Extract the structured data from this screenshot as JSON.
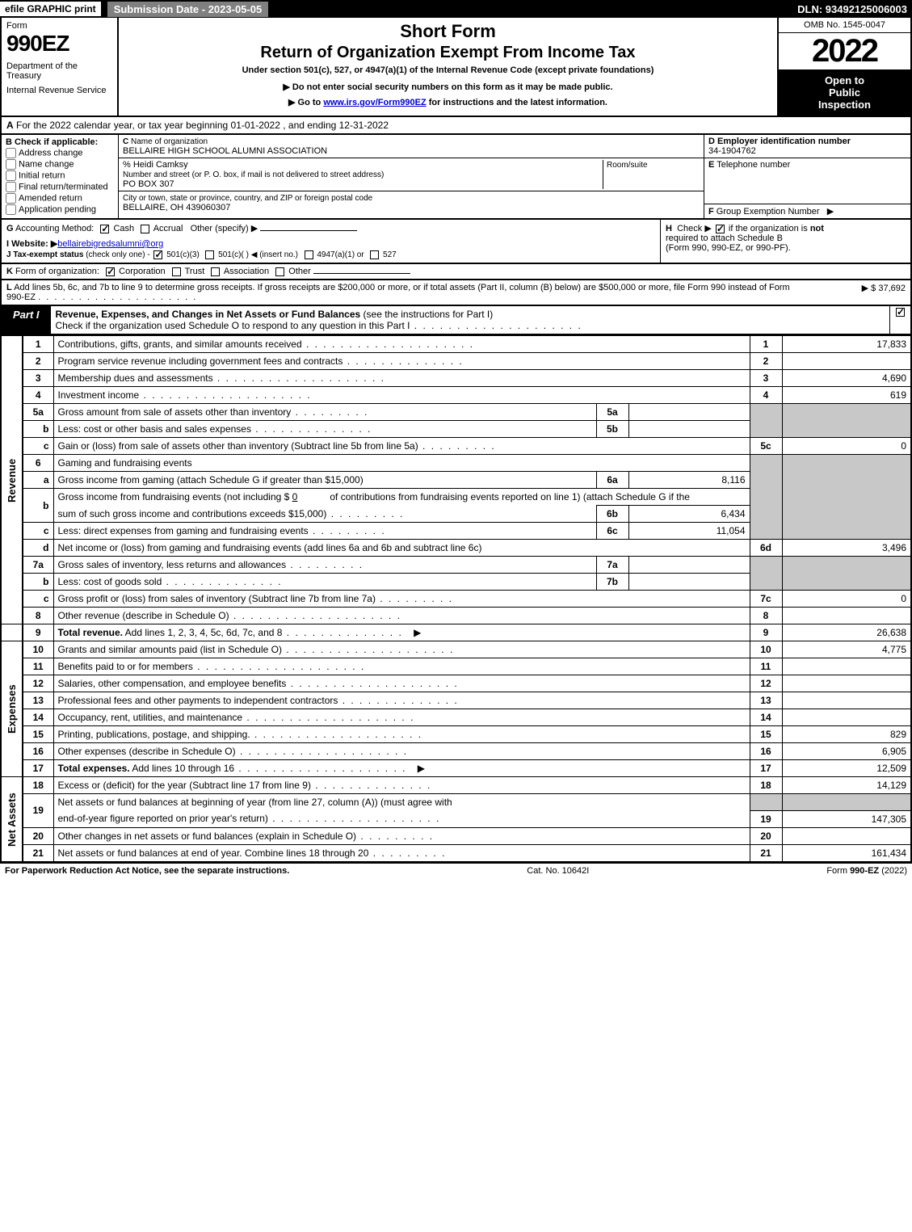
{
  "topbar": {
    "efile": "efile GRAPHIC print",
    "submission": "Submission Date - 2023-05-05",
    "dln": "DLN: 93492125006003"
  },
  "header": {
    "form_word": "Form",
    "form_num": "990EZ",
    "dept1": "Department of the Treasury",
    "dept2": "Internal Revenue Service",
    "short_form": "Short Form",
    "return_title": "Return of Organization Exempt From Income Tax",
    "under_sec": "Under section 501(c), 527, or 4947(a)(1) of the Internal Revenue Code (except private foundations)",
    "note1": "▶ Do not enter social security numbers on this form as it may be made public.",
    "note2_pre": "▶ Go to ",
    "note2_link": "www.irs.gov/Form990EZ",
    "note2_post": " for instructions and the latest information.",
    "omb": "OMB No. 1545-0047",
    "year": "2022",
    "open1": "Open to",
    "open2": "Public",
    "open3": "Inspection"
  },
  "section_a": {
    "label": "A",
    "text": "For the 2022 calendar year, or tax year beginning 01-01-2022  , and ending 12-31-2022"
  },
  "section_b": {
    "label": "B",
    "hdr": "Check if applicable:",
    "opts": [
      "Address change",
      "Name change",
      "Initial return",
      "Final return/terminated",
      "Amended return",
      "Application pending"
    ]
  },
  "section_c": {
    "label": "C",
    "name_lbl": "Name of organization",
    "name_val": "BELLAIRE HIGH SCHOOL ALUMNI ASSOCIATION",
    "care_of": "% Heidi Camksy",
    "street_lbl": "Number and street (or P. O. box, if mail is not delivered to street address)",
    "street_val": "PO BOX 307",
    "room_lbl": "Room/suite",
    "city_lbl": "City or town, state or province, country, and ZIP or foreign postal code",
    "city_val": "BELLAIRE, OH  439060307"
  },
  "section_d": {
    "label": "D",
    "hdr": "Employer identification number",
    "val": "34-1904762"
  },
  "section_e": {
    "label": "E",
    "hdr": "Telephone number",
    "val": ""
  },
  "section_f": {
    "label": "F",
    "hdr": "Group Exemption Number",
    "arrow": "▶"
  },
  "section_g": {
    "label": "G",
    "hdr": "Accounting Method:",
    "cash": "Cash",
    "accrual": "Accrual",
    "other": "Other (specify) ▶"
  },
  "section_h": {
    "label": "H",
    "text1": "Check ▶",
    "text2": "if the organization is",
    "text_not": "not",
    "text3": "required to attach Schedule B",
    "text4": "(Form 990, 990-EZ, or 990-PF)."
  },
  "section_i": {
    "label": "I",
    "hdr": "Website: ▶",
    "val": "bellairebigredsalumni@org"
  },
  "section_j": {
    "label": "J",
    "hdr": "Tax-exempt status",
    "note": "(check only one) -",
    "o1": "501(c)(3)",
    "o2": "501(c)(   ) ◀ (insert no.)",
    "o3": "4947(a)(1) or",
    "o4": "527"
  },
  "section_k": {
    "label": "K",
    "hdr": "Form of organization:",
    "o1": "Corporation",
    "o2": "Trust",
    "o3": "Association",
    "o4": "Other"
  },
  "section_l": {
    "label": "L",
    "text": "Add lines 5b, 6c, and 7b to line 9 to determine gross receipts. If gross receipts are $200,000 or more, or if total assets (Part II, column (B) below) are $500,000 or more, file Form 990 instead of Form 990-EZ",
    "amt_prefix": "▶ $ ",
    "amt": "37,692"
  },
  "part1": {
    "badge": "Part I",
    "title": "Revenue, Expenses, and Changes in Net Assets or Fund Balances",
    "title_paren": "(see the instructions for Part I)",
    "sub": "Check if the organization used Schedule O to respond to any question in this Part I"
  },
  "side_labels": {
    "revenue": "Revenue",
    "expenses": "Expenses",
    "net": "Net Assets"
  },
  "lines": {
    "l1": {
      "n": "1",
      "d": "Contributions, gifts, grants, and similar amounts received",
      "a": "17,833"
    },
    "l2": {
      "n": "2",
      "d": "Program service revenue including government fees and contracts",
      "a": ""
    },
    "l3": {
      "n": "3",
      "d": "Membership dues and assessments",
      "a": "4,690"
    },
    "l4": {
      "n": "4",
      "d": "Investment income",
      "a": "619"
    },
    "l5a": {
      "n": "5a",
      "d": "Gross amount from sale of assets other than inventory",
      "sub": "5a",
      "sv": ""
    },
    "l5b": {
      "n": "b",
      "d": "Less: cost or other basis and sales expenses",
      "sub": "5b",
      "sv": ""
    },
    "l5c": {
      "n": "c",
      "d": "Gain or (loss) from sale of assets other than inventory (Subtract line 5b from line 5a)",
      "rn": "5c",
      "a": "0"
    },
    "l6": {
      "n": "6",
      "d": "Gaming and fundraising events"
    },
    "l6a": {
      "n": "a",
      "d": "Gross income from gaming (attach Schedule G if greater than $15,000)",
      "sub": "6a",
      "sv": "8,116"
    },
    "l6b": {
      "n": "b",
      "d1": "Gross income from fundraising events (not including $",
      "d_amt": "0",
      "d1b": "of contributions from fundraising events reported on line 1) (attach Schedule G if the",
      "d2": "sum of such gross income and contributions exceeds $15,000)",
      "sub": "6b",
      "sv": "6,434"
    },
    "l6c": {
      "n": "c",
      "d": "Less: direct expenses from gaming and fundraising events",
      "sub": "6c",
      "sv": "11,054"
    },
    "l6d": {
      "n": "d",
      "d": "Net income or (loss) from gaming and fundraising events (add lines 6a and 6b and subtract line 6c)",
      "rn": "6d",
      "a": "3,496"
    },
    "l7a": {
      "n": "7a",
      "d": "Gross sales of inventory, less returns and allowances",
      "sub": "7a",
      "sv": ""
    },
    "l7b": {
      "n": "b",
      "d": "Less: cost of goods sold",
      "sub": "7b",
      "sv": ""
    },
    "l7c": {
      "n": "c",
      "d": "Gross profit or (loss) from sales of inventory (Subtract line 7b from line 7a)",
      "rn": "7c",
      "a": "0"
    },
    "l8": {
      "n": "8",
      "d": "Other revenue (describe in Schedule O)",
      "rn": "8",
      "a": ""
    },
    "l9": {
      "n": "9",
      "d": "Total revenue.",
      "d2": "Add lines 1, 2, 3, 4, 5c, 6d, 7c, and 8",
      "rn": "9",
      "a": "26,638"
    },
    "l10": {
      "n": "10",
      "d": "Grants and similar amounts paid (list in Schedule O)",
      "rn": "10",
      "a": "4,775"
    },
    "l11": {
      "n": "11",
      "d": "Benefits paid to or for members",
      "rn": "11",
      "a": ""
    },
    "l12": {
      "n": "12",
      "d": "Salaries, other compensation, and employee benefits",
      "rn": "12",
      "a": ""
    },
    "l13": {
      "n": "13",
      "d": "Professional fees and other payments to independent contractors",
      "rn": "13",
      "a": ""
    },
    "l14": {
      "n": "14",
      "d": "Occupancy, rent, utilities, and maintenance",
      "rn": "14",
      "a": ""
    },
    "l15": {
      "n": "15",
      "d": "Printing, publications, postage, and shipping.",
      "rn": "15",
      "a": "829"
    },
    "l16": {
      "n": "16",
      "d": "Other expenses (describe in Schedule O)",
      "rn": "16",
      "a": "6,905"
    },
    "l17": {
      "n": "17",
      "d": "Total expenses.",
      "d2": "Add lines 10 through 16",
      "rn": "17",
      "a": "12,509"
    },
    "l18": {
      "n": "18",
      "d": "Excess or (deficit) for the year (Subtract line 17 from line 9)",
      "rn": "18",
      "a": "14,129"
    },
    "l19": {
      "n": "19",
      "d": "Net assets or fund balances at beginning of year (from line 27, column (A)) (must agree with",
      "d2": "end-of-year figure reported on prior year's return)",
      "rn": "19",
      "a": "147,305"
    },
    "l20": {
      "n": "20",
      "d": "Other changes in net assets or fund balances (explain in Schedule O)",
      "rn": "20",
      "a": ""
    },
    "l21": {
      "n": "21",
      "d": "Net assets or fund balances at end of year. Combine lines 18 through 20",
      "rn": "21",
      "a": "161,434"
    }
  },
  "footer": {
    "left": "For Paperwork Reduction Act Notice, see the separate instructions.",
    "center": "Cat. No. 10642I",
    "right_pre": "Form ",
    "right_bold": "990-EZ",
    "right_post": " (2022)"
  }
}
